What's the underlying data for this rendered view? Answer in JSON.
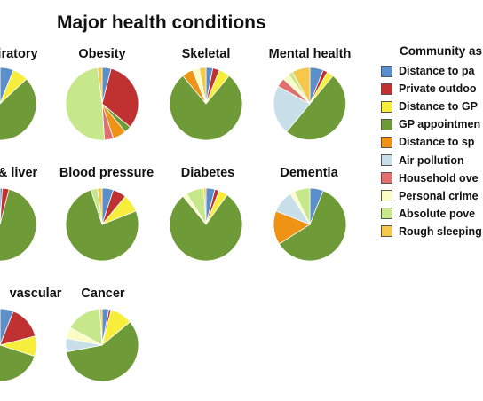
{
  "chart_data": {
    "type": "pie",
    "title": "Major health conditions",
    "legend": {
      "title": "Community as",
      "placement": "right",
      "entries": [
        {
          "label": "Distance to pa",
          "color": "#5B8FC9"
        },
        {
          "label": "Private outdoo",
          "color": "#C03232"
        },
        {
          "label": "Distance to GP",
          "color": "#F7EE3C"
        },
        {
          "label": "GP appointmen",
          "color": "#6E9B37"
        },
        {
          "label": "Distance to sp",
          "color": "#EE9314"
        },
        {
          "label": "Air pollution",
          "color": "#C8DFEA"
        },
        {
          "label": "Household ove",
          "color": "#E07070"
        },
        {
          "label": "Personal crime",
          "color": "#FBFBC4"
        },
        {
          "label": "Absolute pove",
          "color": "#C6E88A"
        },
        {
          "label": "Rough sleeping",
          "color": "#F5C74A"
        }
      ]
    },
    "pies": [
      {
        "label": "iratory",
        "values": [
          6,
          0,
          7,
          85,
          0,
          0,
          0,
          0,
          0,
          2
        ]
      },
      {
        "label": "Obesity",
        "values": [
          4,
          32,
          0,
          3,
          6,
          0,
          4,
          0,
          49,
          2
        ]
      },
      {
        "label": "Skeletal",
        "values": [
          3,
          3,
          5,
          78,
          5,
          0,
          0,
          3,
          0,
          3
        ]
      },
      {
        "label": "Mental health",
        "values": [
          6,
          2,
          3,
          50,
          0,
          22,
          4,
          3,
          2,
          8
        ]
      },
      {
        "label": "& liver",
        "values": [
          1,
          3,
          0,
          94,
          0,
          0,
          0,
          0,
          0,
          2
        ]
      },
      {
        "label": "Blood pressure",
        "values": [
          5,
          6,
          8,
          76,
          0,
          0,
          0,
          0,
          3,
          2
        ]
      },
      {
        "label": "Diabetes",
        "values": [
          4,
          2,
          4,
          80,
          0,
          0,
          0,
          2,
          8,
          1
        ]
      },
      {
        "label": "Dementia",
        "values": [
          6,
          0,
          0,
          60,
          15,
          10,
          0,
          2,
          7,
          0
        ]
      },
      {
        "label": "vascular",
        "values": [
          6,
          15,
          9,
          65,
          0,
          0,
          0,
          0,
          5,
          0
        ]
      },
      {
        "label": "Cancer",
        "values": [
          3,
          1,
          10,
          58,
          0,
          6,
          0,
          5,
          16,
          1
        ]
      }
    ]
  }
}
